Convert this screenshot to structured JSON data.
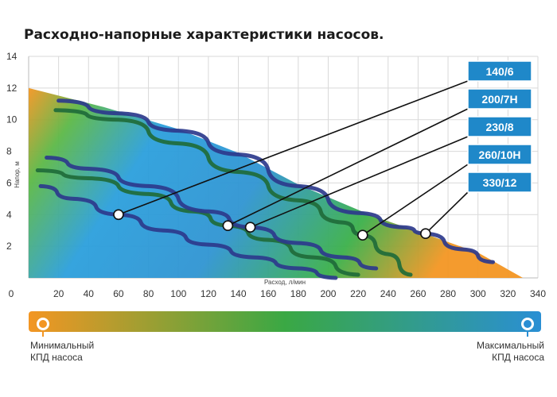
{
  "title": "Расходно-напорные характеристики насосов.",
  "chart_data": {
    "type": "line",
    "title": "Расходно-напорные характеристики насосов.",
    "xlabel": "Расход, л/мин",
    "ylabel": "Напор, м",
    "xlim": [
      0,
      340
    ],
    "ylim": [
      0,
      14
    ],
    "x_ticks": [
      0,
      20,
      40,
      60,
      80,
      100,
      120,
      140,
      160,
      180,
      200,
      220,
      240,
      260,
      280,
      300,
      320,
      340
    ],
    "y_ticks": [
      2,
      4,
      6,
      8,
      10,
      12,
      14
    ],
    "grid": true,
    "legend_position": "right",
    "background": "efficiency color map (orange = minimal, blue = maximal)",
    "envelope": {
      "x": [
        0,
        50,
        100,
        140,
        180,
        230,
        270,
        300,
        330
      ],
      "y": [
        12,
        10.8,
        9.4,
        7.9,
        5.9,
        3.9,
        2.6,
        1.6,
        0
      ]
    },
    "series": [
      {
        "name": "140/6",
        "color": "#2d3a8c",
        "marker": {
          "x": 60,
          "y": 4.0
        },
        "x": [
          8,
          30,
          60,
          90,
          120,
          150,
          180,
          205
        ],
        "y": [
          5.8,
          5.0,
          4.0,
          3.0,
          2.1,
          1.3,
          0.6,
          0
        ]
      },
      {
        "name": "200/7H",
        "color": "#1f6b3a",
        "marker": {
          "x": 133,
          "y": 3.3
        },
        "x": [
          6,
          40,
          80,
          110,
          133,
          160,
          190,
          220
        ],
        "y": [
          6.8,
          6.3,
          5.3,
          4.2,
          3.3,
          2.4,
          1.3,
          0.2
        ]
      },
      {
        "name": "230/8",
        "color": "#2d3a8c",
        "marker": {
          "x": 148,
          "y": 3.2
        },
        "x": [
          12,
          40,
          80,
          120,
          148,
          180,
          210,
          232
        ],
        "y": [
          7.6,
          6.9,
          5.8,
          4.2,
          3.2,
          2.2,
          1.3,
          0.6
        ]
      },
      {
        "name": "260/10H",
        "color": "#1f6b3a",
        "marker": {
          "x": 223,
          "y": 2.7
        },
        "x": [
          18,
          60,
          100,
          140,
          180,
          210,
          223,
          240,
          255
        ],
        "y": [
          10.6,
          10.0,
          8.5,
          6.7,
          4.9,
          3.5,
          2.7,
          1.5,
          0.2
        ]
      },
      {
        "name": "330/12",
        "color": "#2d3a8c",
        "marker": {
          "x": 265,
          "y": 2.8
        },
        "x": [
          20,
          60,
          100,
          140,
          180,
          220,
          250,
          265,
          290,
          310
        ],
        "y": [
          11.2,
          10.4,
          9.3,
          7.8,
          5.8,
          4.1,
          3.2,
          2.8,
          1.8,
          1.0
        ]
      }
    ]
  },
  "efficiency_bar": {
    "min_label_line1": "Минимальный",
    "min_label_line2": "КПД насоса",
    "max_label_line1": "Максимальный",
    "max_label_line2": "КПД насоса",
    "min_color": "#f39623",
    "mid_color": "#3aa844",
    "max_color": "#2a8fd4"
  }
}
